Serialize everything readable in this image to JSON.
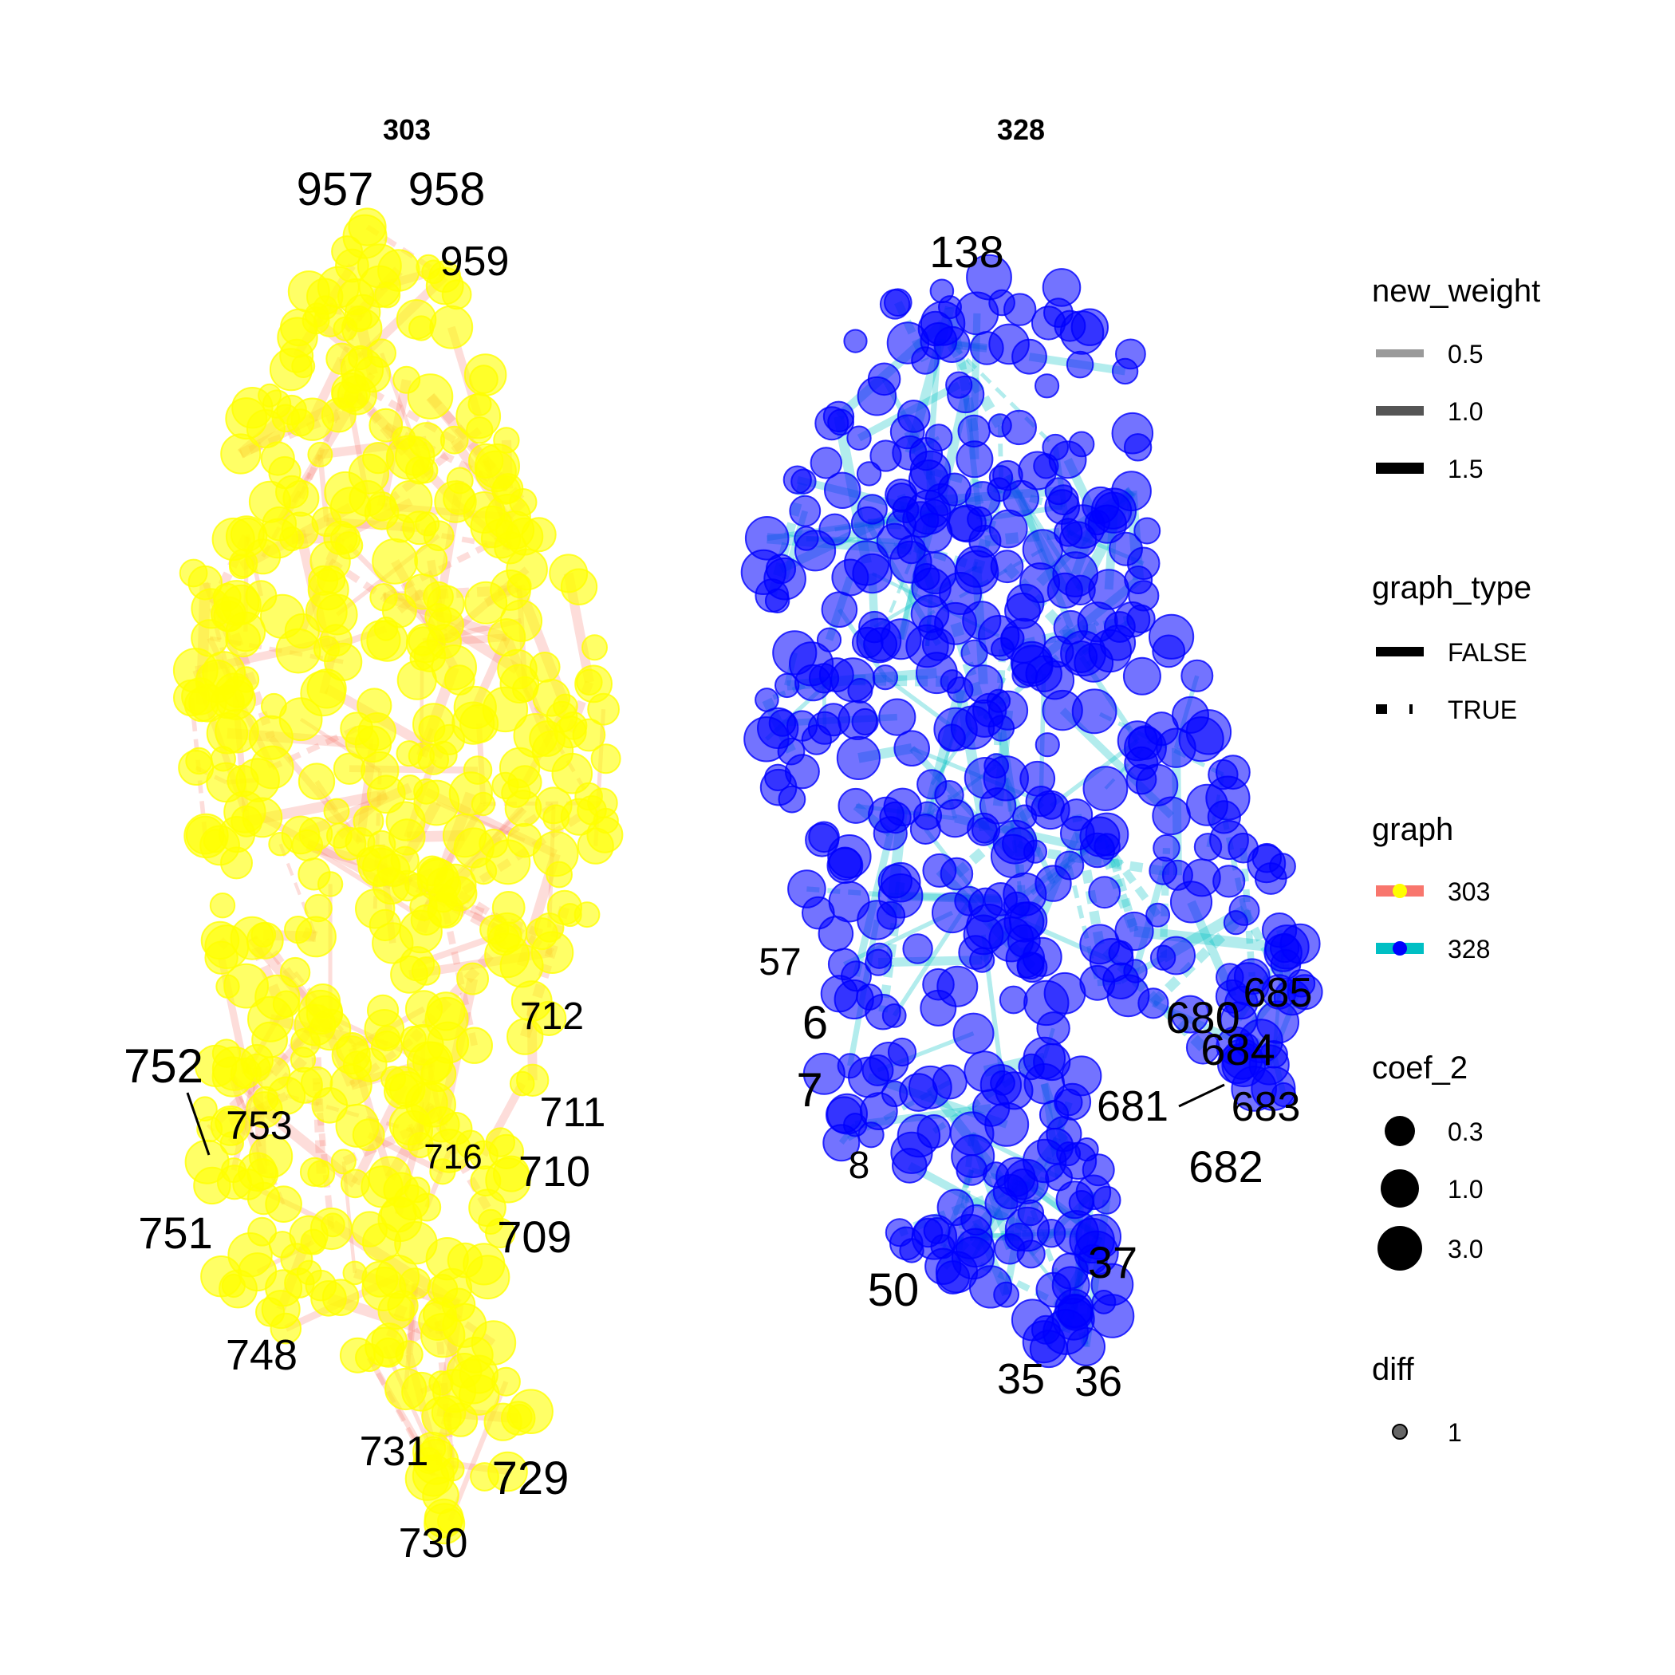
{
  "panels": [
    {
      "title": "303",
      "edge_color": "#F8766D",
      "node_color": "#FFFF00",
      "labels": [
        "957",
        "958",
        "959",
        "712",
        "711",
        "710",
        "709",
        "716",
        "752",
        "753",
        "751",
        "748",
        "731",
        "729",
        "730"
      ]
    },
    {
      "title": "328",
      "edge_color": "#00BFC4",
      "node_color": "#0000FF",
      "labels": [
        "138",
        "57",
        "6",
        "7",
        "8",
        "50",
        "35",
        "36",
        "37",
        "680",
        "685",
        "684",
        "681",
        "683",
        "682"
      ]
    }
  ],
  "legend": {
    "new_weight": {
      "title": "new_weight",
      "items": [
        "0.5",
        "1.0",
        "1.5"
      ]
    },
    "graph_type": {
      "title": "graph_type",
      "items": [
        "FALSE",
        "TRUE"
      ]
    },
    "graph": {
      "title": "graph",
      "items": [
        {
          "label": "303",
          "line_color": "#F8766D",
          "dot_color": "#FFFF00"
        },
        {
          "label": "328",
          "line_color": "#00BFC4",
          "dot_color": "#0000FF"
        }
      ]
    },
    "coef_2": {
      "title": "coef_2",
      "items": [
        "0.3",
        "1.0",
        "3.0"
      ]
    },
    "diff": {
      "title": "diff",
      "items": [
        "1"
      ]
    }
  }
}
